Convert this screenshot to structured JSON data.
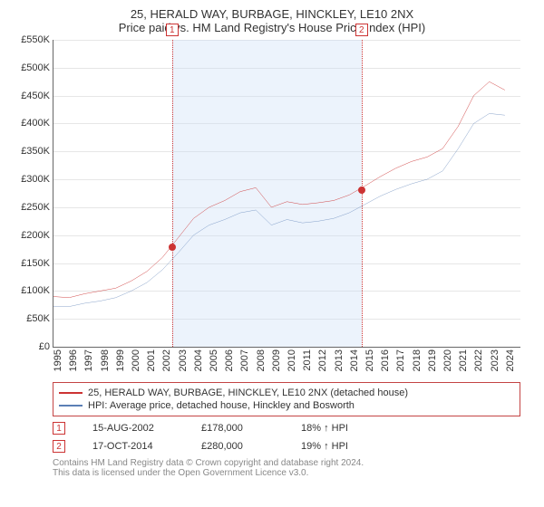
{
  "title_line1": "25, HERALD WAY, BURBAGE, HINCKLEY, LE10 2NX",
  "title_line2": "Price paid vs. HM Land Registry's House Price Index (HPI)",
  "chart": {
    "type": "line",
    "background_color": "#ffffff",
    "grid_color": "#e6e6e6",
    "axis_color": "#666666",
    "x_years": [
      "1995",
      "1996",
      "1997",
      "1998",
      "1999",
      "2000",
      "2001",
      "2002",
      "2003",
      "2004",
      "2005",
      "2006",
      "2007",
      "2008",
      "2009",
      "2010",
      "2011",
      "2012",
      "2013",
      "2014",
      "2015",
      "2016",
      "2017",
      "2018",
      "2019",
      "2020",
      "2021",
      "2022",
      "2023",
      "2024"
    ],
    "xlim": [
      1995,
      2025
    ],
    "ylim": [
      0,
      550000
    ],
    "ytick_step": 50000,
    "ytick_labels": [
      "£0",
      "£50K",
      "£100K",
      "£150K",
      "£200K",
      "£250K",
      "£300K",
      "£350K",
      "£400K",
      "£450K",
      "£500K",
      "£550K"
    ],
    "label_fontsize": 11,
    "shade": {
      "from": 2002.62,
      "to": 2014.79,
      "color": "rgba(200,220,245,0.35)"
    },
    "markers": [
      {
        "id": "1",
        "year": 2002.62,
        "color": "#cc3333"
      },
      {
        "id": "2",
        "year": 2014.79,
        "color": "#cc3333"
      }
    ],
    "series": [
      {
        "name": "25, HERALD WAY, BURBAGE, HINCKLEY, LE10 2NX (detached house)",
        "color": "#cc3333",
        "line_width": 1.5,
        "points_y": [
          90000,
          88000,
          95000,
          100000,
          105000,
          118000,
          135000,
          160000,
          195000,
          230000,
          250000,
          262000,
          278000,
          285000,
          250000,
          260000,
          255000,
          258000,
          262000,
          272000,
          288000,
          305000,
          320000,
          332000,
          340000,
          355000,
          395000,
          450000,
          475000,
          460000
        ]
      },
      {
        "name": "HPI: Average price, detached house, Hinckley and Bosworth",
        "color": "#5b7fb5",
        "line_width": 1.2,
        "points_y": [
          72000,
          72000,
          78000,
          82000,
          88000,
          100000,
          115000,
          138000,
          168000,
          200000,
          218000,
          228000,
          240000,
          245000,
          218000,
          228000,
          222000,
          225000,
          230000,
          240000,
          255000,
          270000,
          282000,
          292000,
          300000,
          315000,
          355000,
          400000,
          418000,
          415000
        ]
      }
    ],
    "data_points": [
      {
        "x": 2002.62,
        "y": 178000,
        "color": "#cc3333"
      },
      {
        "x": 2014.79,
        "y": 280000,
        "color": "#cc3333"
      }
    ]
  },
  "legend": {
    "border_color": "#c44444",
    "rows": [
      {
        "color": "#cc3333",
        "label": "25, HERALD WAY, BURBAGE, HINCKLEY, LE10 2NX (detached house)"
      },
      {
        "color": "#5b7fb5",
        "label": "HPI: Average price, detached house, Hinckley and Bosworth"
      }
    ]
  },
  "transactions": [
    {
      "id": "1",
      "marker_color": "#cc3333",
      "date": "15-AUG-2002",
      "price": "£178,000",
      "delta": "18% ↑ HPI"
    },
    {
      "id": "2",
      "marker_color": "#cc3333",
      "date": "17-OCT-2014",
      "price": "£280,000",
      "delta": "19% ↑ HPI"
    }
  ],
  "footer_line1": "Contains HM Land Registry data © Crown copyright and database right 2024.",
  "footer_line2": "This data is licensed under the Open Government Licence v3.0."
}
